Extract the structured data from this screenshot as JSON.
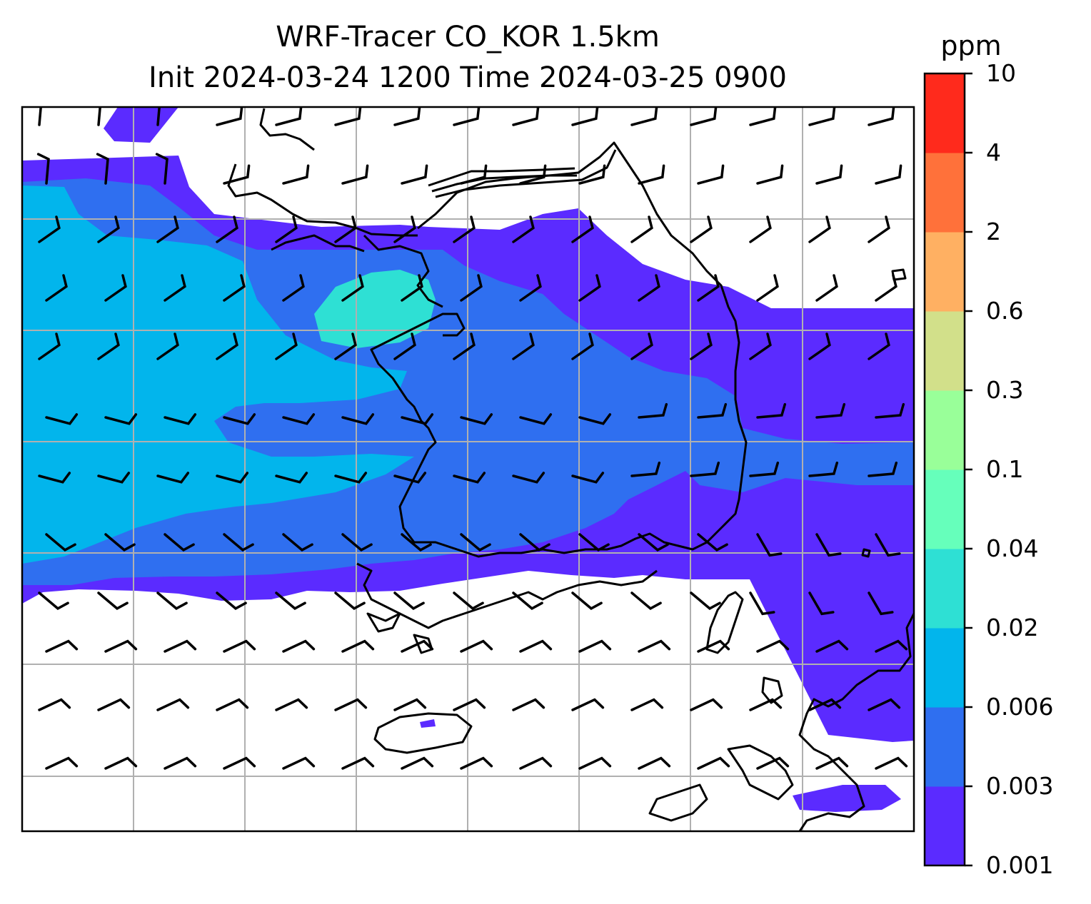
{
  "title": {
    "line1": "WRF-Tracer CO_KOR 1.5km",
    "line2": "Init 2024-03-24 1200 Time 2024-03-25 0900"
  },
  "colorbar": {
    "unit": "ppm",
    "levels": [
      "0.001",
      "0.003",
      "0.006",
      "0.02",
      "0.04",
      "0.1",
      "0.3",
      "0.6",
      "2",
      "4",
      "10"
    ],
    "colors": [
      "#5b2bff",
      "#2f6ff0",
      "#02b5ec",
      "#2ee0d4",
      "#66ffbb",
      "#99ff99",
      "#d2e08a",
      "#ffb062",
      "#ff713a",
      "#ff2a1c"
    ]
  },
  "map": {
    "grid": true,
    "gridlines": 7,
    "field": "CO tracer concentration at 1.5 km",
    "overlays": [
      "coastlines",
      "wind-barbs"
    ]
  }
}
